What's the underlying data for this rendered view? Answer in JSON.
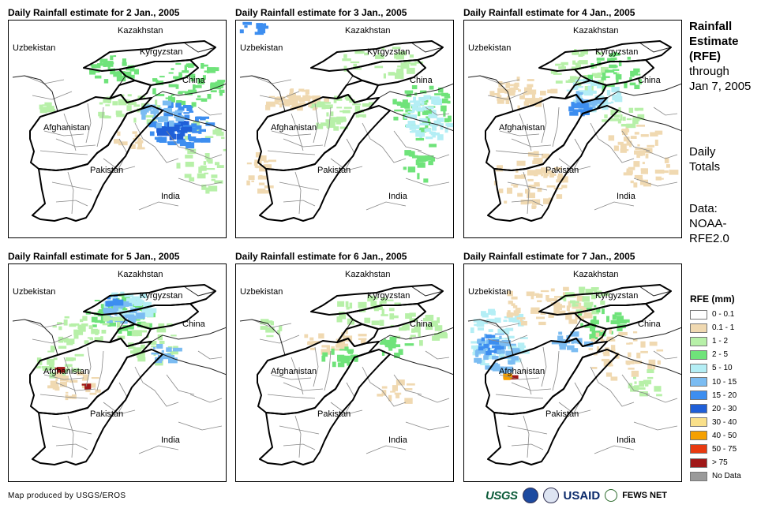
{
  "panels": [
    {
      "title": "Daily Rainfall estimate for 2 Jan., 2005"
    },
    {
      "title": "Daily Rainfall estimate for 3 Jan., 2005"
    },
    {
      "title": "Daily Rainfall estimate for 4 Jan., 2005"
    },
    {
      "title": "Daily Rainfall estimate for 5 Jan., 2005"
    },
    {
      "title": "Daily Rainfall estimate for 6 Jan., 2005"
    },
    {
      "title": "Daily Rainfall estimate for 7 Jan., 2005"
    }
  ],
  "map_labels": {
    "kazakhstan": "Kazakhstan",
    "uzbekistan": "Uzbekistan",
    "kyrgyzstan": "Kyrgyzstan",
    "china": "China",
    "afghanistan": "Afghanistan",
    "pakistan": "Pakistan",
    "india": "India"
  },
  "side": {
    "title_1": "Rainfall",
    "title_2": "Estimate",
    "title_3": "(RFE)",
    "through": "through",
    "date": "Jan 7, 2005",
    "daily": "Daily",
    "totals": "Totals",
    "data_label": "Data:",
    "data_1": "NOAA-",
    "data_2": "RFE2.0"
  },
  "legend": {
    "title": "RFE (mm)",
    "items": [
      {
        "label": "0 - 0.1",
        "color": "#ffffff"
      },
      {
        "label": "0.1 - 1",
        "color": "#f0d9b1"
      },
      {
        "label": "1 - 2",
        "color": "#b7f0a8"
      },
      {
        "label": "2 - 5",
        "color": "#6fe37a"
      },
      {
        "label": "5 - 10",
        "color": "#b4eef5"
      },
      {
        "label": "10 - 15",
        "color": "#7bbcf2"
      },
      {
        "label": "15 - 20",
        "color": "#3d8ef0"
      },
      {
        "label": "20 - 30",
        "color": "#1f5fd8"
      },
      {
        "label": "30 - 40",
        "color": "#f9e08a"
      },
      {
        "label": "40 - 50",
        "color": "#f5a000"
      },
      {
        "label": "50 - 75",
        "color": "#e83a10"
      },
      {
        "label": "> 75",
        "color": "#a01818"
      },
      {
        "label": "No Data",
        "color": "#9a9a9a"
      }
    ]
  },
  "credit": "Map produced by USGS/EROS",
  "logos": {
    "usgs": "USGS",
    "usaid": "USAID",
    "fews": "FEWS NET"
  }
}
